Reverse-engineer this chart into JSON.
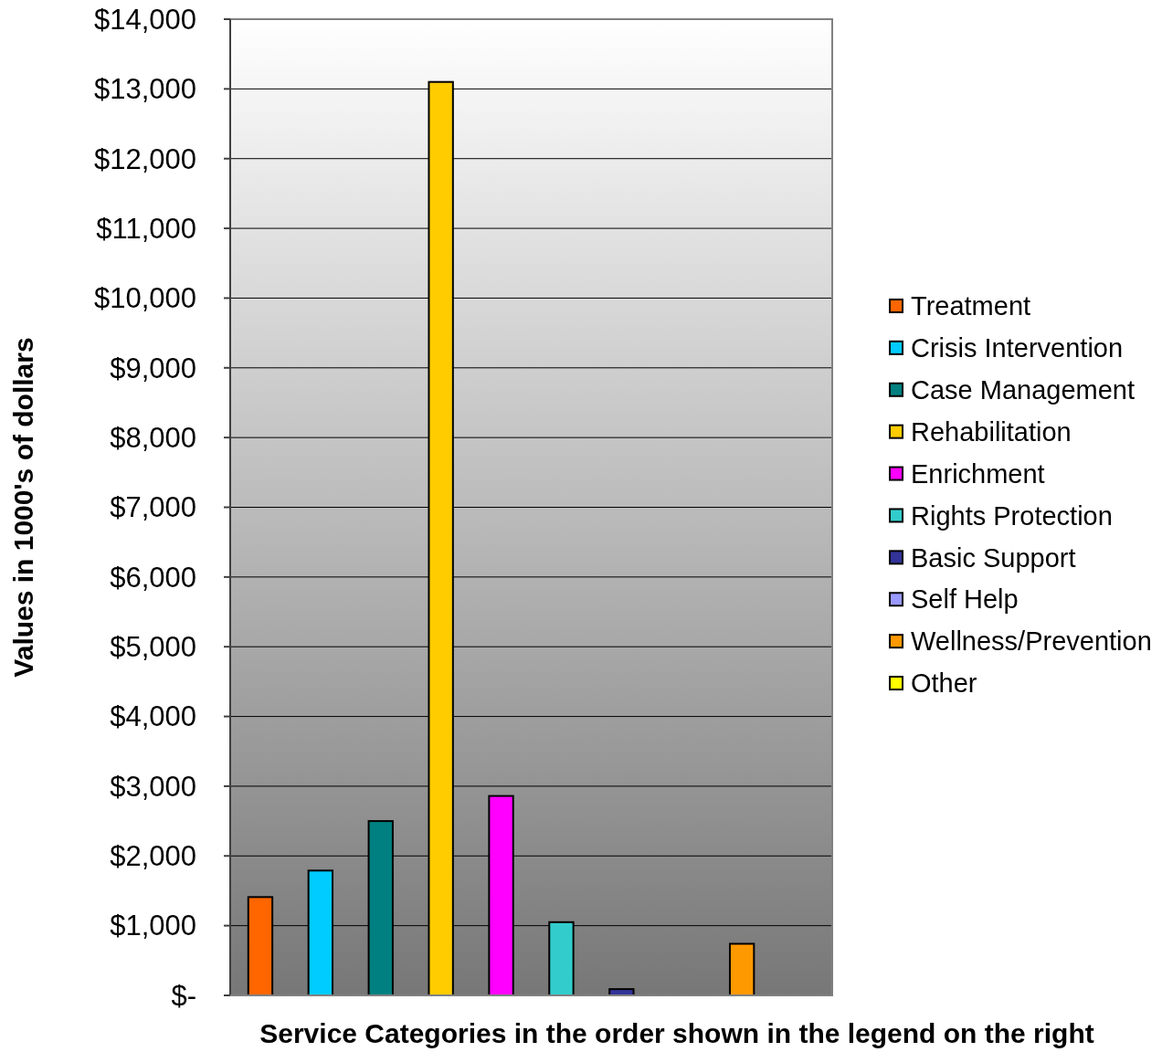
{
  "chart_data": {
    "type": "bar",
    "xlabel": "Service Categories in the order shown in the legend on the right",
    "ylabel": "Values in 1000's of dollars",
    "categories": [
      null
    ],
    "series": [
      {
        "name": "Treatment",
        "color": "#ff6600",
        "values": [
          1410
        ]
      },
      {
        "name": "Crisis Intervention",
        "color": "#00ccff",
        "values": [
          1790
        ]
      },
      {
        "name": "Case Management",
        "color": "#008080",
        "values": [
          2500
        ]
      },
      {
        "name": "Rehabilitation",
        "color": "#ffcc00",
        "values": [
          13100
        ]
      },
      {
        "name": "Enrichment",
        "color": "#ff00ff",
        "values": [
          2860
        ]
      },
      {
        "name": "Rights Protection",
        "color": "#33cccc",
        "values": [
          1050
        ]
      },
      {
        "name": "Basic Support",
        "color": "#333399",
        "values": [
          90
        ]
      },
      {
        "name": "Self Help",
        "color": "#9999ff",
        "values": [
          null
        ]
      },
      {
        "name": "Wellness/Prevention",
        "color": "#ff9900",
        "values": [
          740
        ]
      },
      {
        "name": "Other",
        "color": "#ffff00",
        "values": [
          null
        ]
      }
    ],
    "ylim": [
      0,
      14000
    ],
    "yticks": [
      {
        "value": 0,
        "label": "$-"
      },
      {
        "value": 1000,
        "label": "$1,000"
      },
      {
        "value": 2000,
        "label": "$2,000"
      },
      {
        "value": 3000,
        "label": "$3,000"
      },
      {
        "value": 4000,
        "label": "$4,000"
      },
      {
        "value": 5000,
        "label": "$5,000"
      },
      {
        "value": 6000,
        "label": "$6,000"
      },
      {
        "value": 7000,
        "label": "$7,000"
      },
      {
        "value": 8000,
        "label": "$8,000"
      },
      {
        "value": 9000,
        "label": "$9,000"
      },
      {
        "value": 10000,
        "label": "$10,000"
      },
      {
        "value": 11000,
        "label": "$11,000"
      },
      {
        "value": 12000,
        "label": "$12,000"
      },
      {
        "value": 13000,
        "label": "$13,000"
      },
      {
        "value": 14000,
        "label": "$14,000"
      }
    ],
    "grid": "y",
    "legend": "right"
  }
}
